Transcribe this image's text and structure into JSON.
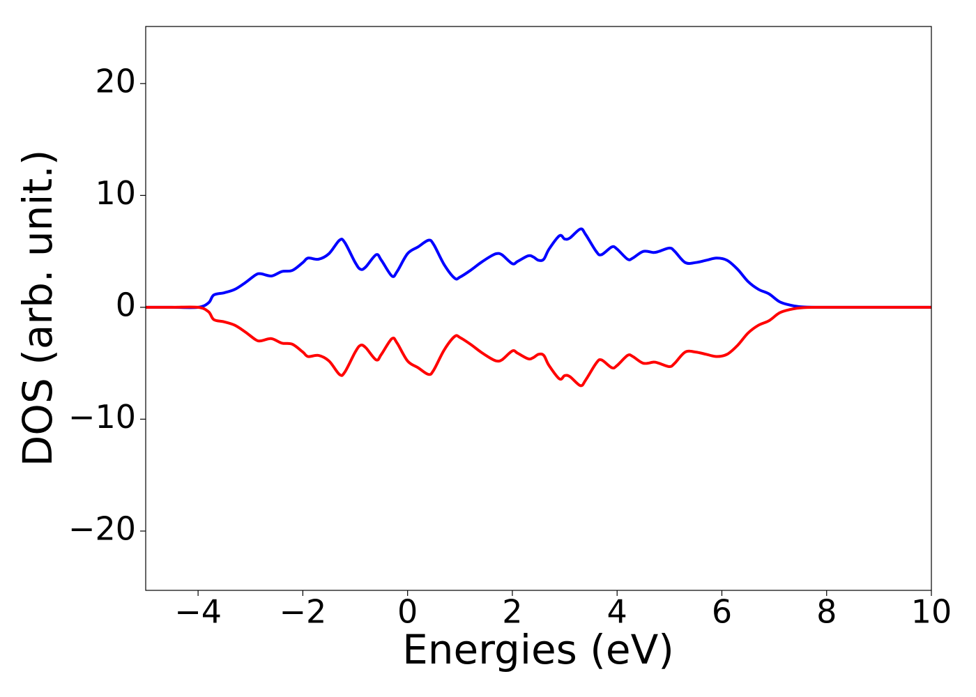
{
  "chart_data": {
    "type": "line",
    "x_label": "Energies (eV)",
    "y_label": "DOS (arb. unit.)",
    "x": [
      -5,
      -4.5,
      -4,
      -3.8,
      -3.7,
      -3.5,
      -3.3,
      -3.1,
      -2.9,
      -2.8,
      -2.6,
      -2.4,
      -2.2,
      -2,
      -1.9,
      -1.7,
      -1.5,
      -1.3,
      -1.2,
      -1,
      -0.9,
      -0.8,
      -0.6,
      -0.5,
      -0.3,
      -0.2,
      0,
      0.2,
      0.4,
      0.5,
      0.7,
      0.9,
      1,
      1.2,
      1.4,
      1.6,
      1.7,
      1.8,
      2,
      2.1,
      2.3,
      2.4,
      2.5,
      2.6,
      2.7,
      2.9,
      3,
      3.1,
      3.3,
      3.4,
      3.6,
      3.7,
      3.9,
      4,
      4.2,
      4.3,
      4.5,
      4.7,
      4.8,
      5,
      5.1,
      5.3,
      5.5,
      5.7,
      5.9,
      6.1,
      6.3,
      6.5,
      6.7,
      6.9,
      7.1,
      7.3,
      7.5,
      7.8,
      8.5,
      10
    ],
    "series": [
      {
        "color": "#0000ff",
        "values": [
          0,
          0,
          0,
          0.4,
          1.1,
          1.3,
          1.6,
          2.2,
          2.9,
          3.0,
          2.8,
          3.2,
          3.3,
          4.0,
          4.4,
          4.3,
          4.8,
          6.0,
          5.8,
          4.0,
          3.4,
          3.6,
          4.7,
          4.2,
          2.8,
          3.2,
          4.8,
          5.4,
          6.0,
          5.6,
          3.8,
          2.6,
          2.7,
          3.3,
          4.0,
          4.6,
          4.8,
          4.7,
          3.9,
          4.1,
          4.6,
          4.5,
          4.2,
          4.3,
          5.2,
          6.4,
          6.1,
          6.2,
          7.0,
          6.5,
          5.0,
          4.7,
          5.4,
          5.2,
          4.3,
          4.4,
          5.0,
          4.9,
          5.0,
          5.3,
          5.0,
          4.0,
          4.0,
          4.2,
          4.4,
          4.2,
          3.4,
          2.3,
          1.6,
          1.2,
          0.5,
          0.2,
          0.05,
          0,
          0,
          0
        ]
      },
      {
        "color": "#ff0000",
        "values": [
          0,
          0,
          0,
          -0.4,
          -1.1,
          -1.3,
          -1.6,
          -2.2,
          -2.9,
          -3.0,
          -2.8,
          -3.2,
          -3.3,
          -4.0,
          -4.4,
          -4.3,
          -4.8,
          -6.0,
          -5.8,
          -4.0,
          -3.4,
          -3.6,
          -4.7,
          -4.2,
          -2.8,
          -3.2,
          -4.8,
          -5.4,
          -6.0,
          -5.6,
          -3.8,
          -2.6,
          -2.7,
          -3.3,
          -4.0,
          -4.6,
          -4.8,
          -4.7,
          -3.9,
          -4.1,
          -4.6,
          -4.5,
          -4.2,
          -4.3,
          -5.2,
          -6.4,
          -6.1,
          -6.2,
          -7.0,
          -6.5,
          -5.0,
          -4.7,
          -5.4,
          -5.2,
          -4.3,
          -4.4,
          -5.0,
          -4.9,
          -5.0,
          -5.3,
          -5.0,
          -4.0,
          -4.0,
          -4.2,
          -4.4,
          -4.2,
          -3.4,
          -2.3,
          -1.6,
          -1.2,
          -0.5,
          -0.2,
          -0.05,
          0,
          0,
          0
        ]
      }
    ],
    "xlim": [
      -5,
      10
    ],
    "xticks": [
      {
        "value": -4,
        "label": "−4"
      },
      {
        "value": -2,
        "label": "−2"
      },
      0,
      2,
      4,
      6,
      8,
      10
    ],
    "ylim": [
      -25.3,
      25.1
    ],
    "yticks": [
      {
        "value": -20,
        "label": "−20"
      },
      {
        "value": -10,
        "label": "−10"
      },
      0,
      10,
      20
    ]
  }
}
